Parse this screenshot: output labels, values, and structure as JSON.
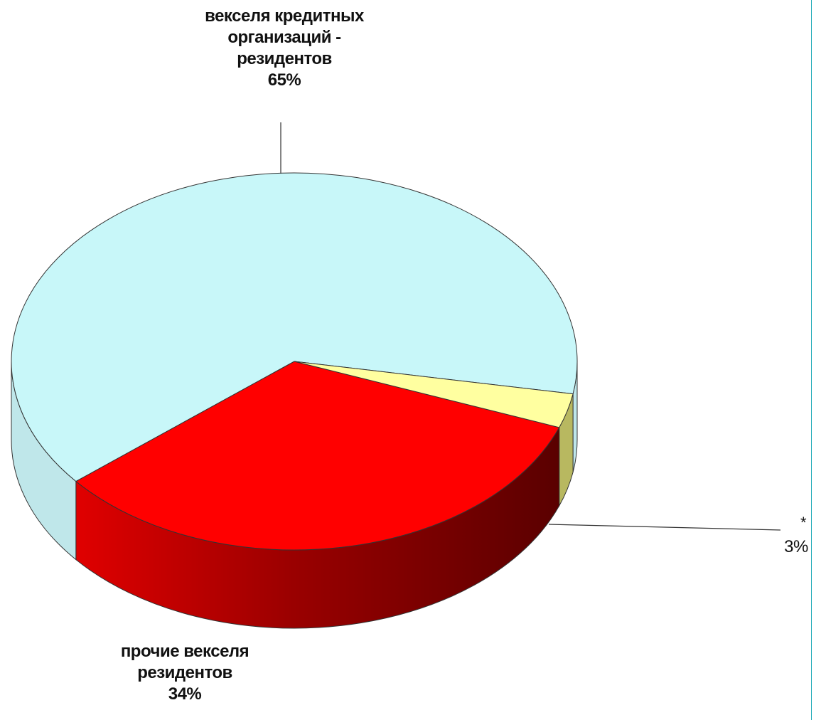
{
  "chart_data": {
    "type": "pie",
    "is_3d": true,
    "title": "",
    "slices": [
      {
        "label_lines": [
          "векселя кредитных",
          "организаций -",
          "резидентов"
        ],
        "percent_text": "65%",
        "value": 65,
        "color": "#c8f7f9",
        "side_color": "#bfe7ea"
      },
      {
        "label_lines": [
          "прочие векселя",
          "резидентов"
        ],
        "percent_text": "34%",
        "value": 34,
        "color": "#ff0000",
        "side_color": "#a80000"
      },
      {
        "label_lines": [
          "*"
        ],
        "percent_text": "3%",
        "value": 3,
        "color": "#ffffa0",
        "side_color": "#b8b860"
      }
    ]
  }
}
